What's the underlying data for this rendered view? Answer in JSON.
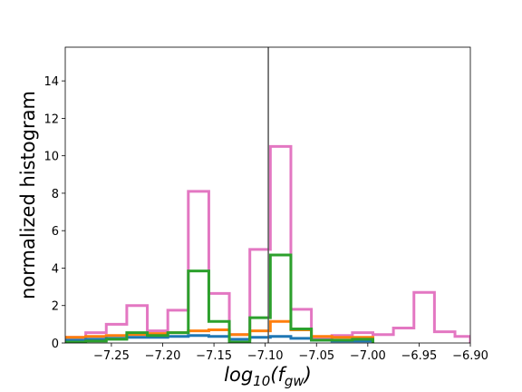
{
  "chart_data": {
    "type": "histogram",
    "xlabel": "log10(f_gw)",
    "xlabel_parts": {
      "base": "log",
      "sub": "10",
      "open": "(",
      "var": "f",
      "var_sub": "gw",
      "close": ")"
    },
    "ylabel": "normalized histogram",
    "xlim": [
      -7.295,
      -6.9
    ],
    "ylim": [
      0,
      15.8
    ],
    "xticks": [
      -7.25,
      -7.2,
      -7.15,
      -7.1,
      -7.05,
      -7.0,
      -6.95,
      -6.9
    ],
    "xtick_labels": [
      "−7.25",
      "−7.20",
      "−7.15",
      "−7.10",
      "−7.05",
      "−7.00",
      "−6.95",
      "−6.90"
    ],
    "yticks": [
      0,
      2,
      4,
      6,
      8,
      10,
      12,
      14
    ],
    "ytick_labels": [
      "0",
      "2",
      "4",
      "6",
      "8",
      "10",
      "12",
      "14"
    ],
    "vertical_line_x": -7.097,
    "vertical_line_color": "#555555",
    "series": [
      {
        "color": "#e377c2",
        "bins": [
          -7.295,
          -7.275,
          -7.255,
          -7.235,
          -7.215,
          -7.195,
          -7.175,
          -7.155,
          -7.135,
          -7.115,
          -7.095,
          -7.075,
          -7.055,
          -7.035,
          -7.015,
          -6.995,
          -6.975,
          -6.955,
          -6.935,
          -6.915,
          -6.9
        ],
        "values": [
          0.3,
          0.55,
          1.0,
          2.0,
          0.65,
          1.75,
          8.1,
          2.65,
          0.45,
          5.0,
          10.5,
          1.8,
          0.25,
          0.4,
          0.55,
          0.45,
          0.8,
          2.7,
          0.6,
          0.35
        ]
      },
      {
        "color": "#ff7f0e",
        "bins": [
          -7.295,
          -7.275,
          -7.255,
          -7.235,
          -7.215,
          -7.195,
          -7.175,
          -7.155,
          -7.135,
          -7.115,
          -7.095,
          -7.075,
          -7.055,
          -7.035,
          -7.015,
          -6.995
        ],
        "values": [
          0.3,
          0.35,
          0.4,
          0.45,
          0.5,
          0.55,
          0.65,
          0.7,
          0.45,
          0.65,
          1.15,
          0.7,
          0.35,
          0.3,
          0.3
        ]
      },
      {
        "color": "#1f77b4",
        "bins": [
          -7.295,
          -7.275,
          -7.255,
          -7.235,
          -7.215,
          -7.195,
          -7.175,
          -7.155,
          -7.135,
          -7.115,
          -7.095,
          -7.075,
          -7.055,
          -7.035,
          -7.015,
          -6.995
        ],
        "values": [
          0.15,
          0.2,
          0.25,
          0.3,
          0.3,
          0.35,
          0.4,
          0.35,
          0.2,
          0.3,
          0.35,
          0.25,
          0.15,
          0.1,
          0.1
        ]
      },
      {
        "color": "#2ca02c",
        "bins": [
          -7.295,
          -7.275,
          -7.255,
          -7.235,
          -7.215,
          -7.195,
          -7.175,
          -7.155,
          -7.135,
          -7.115,
          -7.095,
          -7.075,
          -7.055,
          -7.035,
          -7.015,
          -6.995
        ],
        "values": [
          0.05,
          0.1,
          0.2,
          0.55,
          0.4,
          0.55,
          3.85,
          1.15,
          0.05,
          1.35,
          4.7,
          0.75,
          0.15,
          0.15,
          0.2
        ]
      }
    ]
  }
}
